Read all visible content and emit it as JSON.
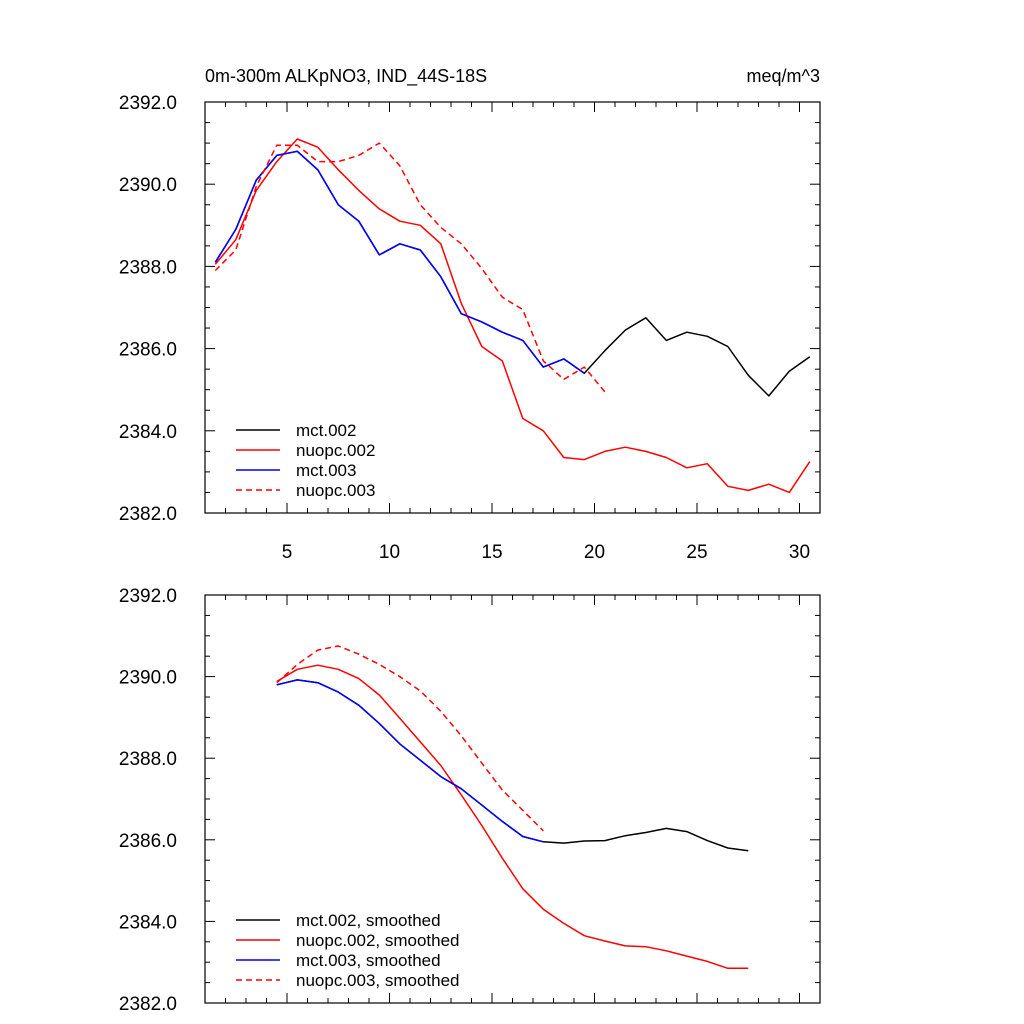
{
  "chart_data": [
    {
      "type": "line",
      "title": "0m-300m ALKpNO3, IND_44S-18S",
      "units": "meq/m^3",
      "xlim": [
        1,
        31
      ],
      "ylim": [
        2382.0,
        2392.0
      ],
      "x_ticks": [
        5,
        10,
        15,
        20,
        25,
        30
      ],
      "y_ticks": [
        "2382.0",
        "2384.0",
        "2386.0",
        "2388.0",
        "2390.0",
        "2392.0"
      ],
      "grid": false,
      "legend_position": "bottom-left",
      "series": [
        {
          "name": "mct.002",
          "color": "#000000",
          "dash": "solid",
          "x": [
            1.5,
            2.5,
            3.5,
            4.5,
            5.5,
            6.5,
            7.5,
            8.5,
            9.5,
            10.5,
            11.5,
            12.5,
            13.5,
            14.5,
            15.5,
            16.5,
            17.5,
            18.5,
            19.5,
            20.5,
            21.5,
            22.5,
            23.5,
            24.5,
            25.5,
            26.5,
            27.5,
            28.5,
            29.5,
            30.5
          ],
          "values": [
            2388.1,
            2388.9,
            2390.1,
            2390.7,
            2390.8,
            2390.35,
            2389.5,
            2389.1,
            2388.28,
            2388.55,
            2388.4,
            2387.75,
            2386.85,
            2386.65,
            2386.4,
            2386.2,
            2385.55,
            2385.75,
            2385.4,
            2385.95,
            2386.45,
            2386.75,
            2386.2,
            2386.4,
            2386.3,
            2386.05,
            2385.35,
            2384.85,
            2385.45,
            2385.8
          ]
        },
        {
          "name": "nuopc.002",
          "color": "#ff0000",
          "dash": "solid",
          "x": [
            1.5,
            2.5,
            3.5,
            4.5,
            5.5,
            6.5,
            7.5,
            8.5,
            9.5,
            10.5,
            11.5,
            12.5,
            13.5,
            14.5,
            15.5,
            16.5,
            17.5,
            18.5,
            19.5,
            20.5,
            21.5,
            22.5,
            23.5,
            24.5,
            25.5,
            26.5,
            27.5,
            28.5,
            29.5,
            30.5
          ],
          "values": [
            2388.05,
            2388.65,
            2389.85,
            2390.55,
            2391.1,
            2390.9,
            2390.35,
            2389.85,
            2389.4,
            2389.1,
            2389.0,
            2388.55,
            2387.1,
            2386.05,
            2385.7,
            2384.3,
            2384.0,
            2383.35,
            2383.3,
            2383.5,
            2383.6,
            2383.5,
            2383.35,
            2383.1,
            2383.2,
            2382.65,
            2382.55,
            2382.7,
            2382.5,
            2383.25
          ]
        },
        {
          "name": "mct.003",
          "color": "#0000ff",
          "dash": "solid",
          "x": [
            1.5,
            2.5,
            3.5,
            4.5,
            5.5,
            6.5,
            7.5,
            8.5,
            9.5,
            10.5,
            11.5,
            12.5,
            13.5,
            14.5,
            15.5,
            16.5,
            17.5,
            18.5,
            19.5
          ],
          "values": [
            2388.1,
            2388.9,
            2390.1,
            2390.7,
            2390.8,
            2390.35,
            2389.5,
            2389.1,
            2388.28,
            2388.55,
            2388.4,
            2387.75,
            2386.85,
            2386.65,
            2386.4,
            2386.2,
            2385.55,
            2385.75,
            2385.4
          ]
        },
        {
          "name": "nuopc.003",
          "color": "#ff0000",
          "dash": "dashed",
          "x": [
            1.5,
            2.5,
            3.5,
            4.5,
            5.5,
            6.5,
            7.5,
            8.5,
            9.5,
            10.5,
            11.5,
            12.5,
            13.5,
            14.5,
            15.5,
            16.5,
            17.5,
            18.5,
            19.5,
            20.5
          ],
          "values": [
            2387.9,
            2388.4,
            2389.95,
            2390.95,
            2390.95,
            2390.55,
            2390.55,
            2390.7,
            2391.0,
            2390.45,
            2389.5,
            2388.95,
            2388.55,
            2387.95,
            2387.25,
            2386.95,
            2385.7,
            2385.25,
            2385.55,
            2384.95
          ]
        }
      ]
    },
    {
      "type": "line",
      "xlim": [
        1,
        31
      ],
      "ylim": [
        2382.0,
        2392.0
      ],
      "x_ticks": [
        5,
        10,
        15,
        20,
        25,
        30
      ],
      "y_ticks": [
        "2382.0",
        "2384.0",
        "2386.0",
        "2388.0",
        "2390.0",
        "2392.0"
      ],
      "grid": false,
      "legend_position": "bottom-left",
      "series": [
        {
          "name": "mct.002, smoothed",
          "color": "#000000",
          "dash": "solid",
          "x": [
            4.5,
            5.5,
            6.5,
            7.5,
            8.5,
            9.5,
            10.5,
            11.5,
            12.5,
            13.5,
            14.5,
            15.5,
            16.5,
            17.5,
            18.5,
            19.5,
            20.5,
            21.5,
            22.5,
            23.5,
            24.5,
            25.5,
            26.5,
            27.5
          ],
          "values": [
            2389.8,
            2389.92,
            2389.85,
            2389.62,
            2389.3,
            2388.85,
            2388.35,
            2387.95,
            2387.55,
            2387.25,
            2386.85,
            2386.45,
            2386.08,
            2385.95,
            2385.92,
            2385.97,
            2385.98,
            2386.1,
            2386.18,
            2386.28,
            2386.2,
            2385.98,
            2385.8,
            2385.73
          ]
        },
        {
          "name": "nuopc.002, smoothed",
          "color": "#ff0000",
          "dash": "solid",
          "x": [
            4.5,
            5.5,
            6.5,
            7.5,
            8.5,
            9.5,
            10.5,
            11.5,
            12.5,
            13.5,
            14.5,
            15.5,
            16.5,
            17.5,
            18.5,
            19.5,
            20.5,
            21.5,
            22.5,
            23.5,
            24.5,
            25.5,
            26.5,
            27.5
          ],
          "values": [
            2389.88,
            2390.18,
            2390.28,
            2390.18,
            2389.95,
            2389.55,
            2388.98,
            2388.4,
            2387.82,
            2387.1,
            2386.35,
            2385.55,
            2384.8,
            2384.3,
            2383.95,
            2383.65,
            2383.52,
            2383.4,
            2383.38,
            2383.28,
            2383.15,
            2383.02,
            2382.85,
            2382.85
          ]
        },
        {
          "name": "mct.003, smoothed",
          "color": "#0000ff",
          "dash": "solid",
          "x": [
            4.5,
            5.5,
            6.5,
            7.5,
            8.5,
            9.5,
            10.5,
            11.5,
            12.5,
            13.5,
            14.5,
            15.5,
            16.5,
            17.5
          ],
          "values": [
            2389.8,
            2389.92,
            2389.85,
            2389.62,
            2389.3,
            2388.85,
            2388.35,
            2387.95,
            2387.55,
            2387.25,
            2386.85,
            2386.45,
            2386.08,
            2385.95
          ]
        },
        {
          "name": "nuopc.003, smoothed",
          "color": "#ff0000",
          "dash": "dashed",
          "x": [
            4.5,
            5.5,
            6.5,
            7.5,
            8.5,
            9.5,
            10.5,
            11.5,
            12.5,
            13.5,
            14.5,
            15.5,
            16.5,
            17.5
          ],
          "values": [
            2389.85,
            2390.3,
            2390.65,
            2390.75,
            2390.55,
            2390.3,
            2390.0,
            2389.65,
            2389.15,
            2388.55,
            2387.88,
            2387.22,
            2386.72,
            2386.22
          ]
        }
      ]
    }
  ]
}
